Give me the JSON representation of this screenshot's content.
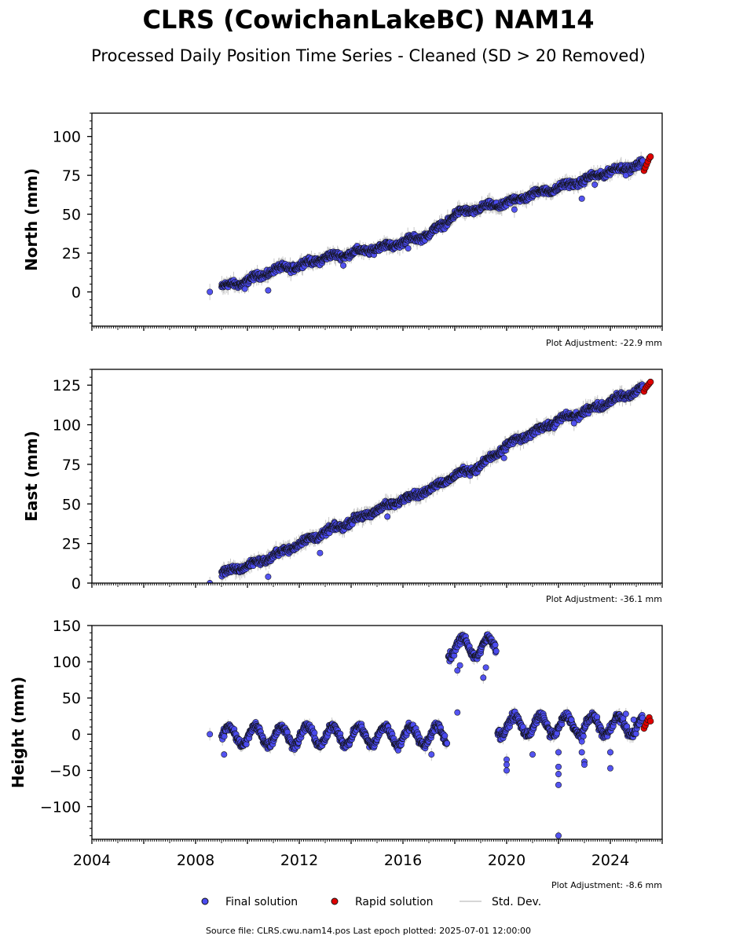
{
  "figure": {
    "title": "CLRS (CowichanLakeBC) NAM14",
    "subtitle": "Processed Daily Position Time Series - Cleaned (SD > 20 Removed)",
    "source_note": "Source file: CLRS.cwu.nam14.pos  Last epoch plotted: 2025-07-01 12:00:00"
  },
  "legend": {
    "final_label": "Final solution",
    "rapid_label": "Rapid solution",
    "std_label": "Std. Dev."
  },
  "colors": {
    "final": "#4b4bf0",
    "rapid": "#e00000",
    "marker_edge": "#111111",
    "std": "#c8c8c8"
  },
  "chart_data": [
    {
      "type": "scatter",
      "panel": "north",
      "ylabel": "North (mm)",
      "adjustment_note": "Plot Adjustment: -22.9 mm",
      "xlim": [
        2004,
        2026
      ],
      "ylim": [
        -22,
        115
      ],
      "yticks": [
        0,
        25,
        50,
        75,
        100
      ],
      "show_xticklabels": false,
      "series": [
        {
          "name": "Final solution",
          "points": [
            [
              2008.55,
              0
            ],
            [
              2009.0,
              3
            ],
            [
              2010.0,
              7
            ],
            [
              2011.0,
              14
            ],
            [
              2012.0,
              17
            ],
            [
              2013.0,
              22
            ],
            [
              2014.0,
              25
            ],
            [
              2015.0,
              28
            ],
            [
              2016.0,
              32
            ],
            [
              2017.0,
              37
            ],
            [
              2017.6,
              44
            ],
            [
              2018.0,
              50
            ],
            [
              2019.0,
              54
            ],
            [
              2020.0,
              57
            ],
            [
              2021.0,
              63
            ],
            [
              2022.0,
              67
            ],
            [
              2023.0,
              72
            ],
            [
              2024.0,
              78
            ],
            [
              2025.0,
              81
            ],
            [
              2025.25,
              83
            ]
          ]
        },
        {
          "name": "Rapid solution",
          "points": [
            [
              2025.3,
              78
            ],
            [
              2025.35,
              80
            ],
            [
              2025.4,
              82
            ],
            [
              2025.45,
              84
            ],
            [
              2025.5,
              86
            ],
            [
              2025.55,
              87
            ]
          ]
        }
      ],
      "outliers": [
        [
          2009.9,
          2
        ],
        [
          2010.8,
          1
        ],
        [
          2013.7,
          17
        ],
        [
          2016.2,
          28
        ],
        [
          2020.3,
          53
        ],
        [
          2022.9,
          60
        ],
        [
          2023.4,
          69
        ],
        [
          2024.6,
          75
        ]
      ]
    },
    {
      "type": "scatter",
      "panel": "east",
      "ylabel": "East (mm)",
      "adjustment_note": "Plot Adjustment: -36.1 mm",
      "xlim": [
        2004,
        2026
      ],
      "ylim": [
        0,
        135
      ],
      "yticks": [
        0,
        25,
        50,
        75,
        100,
        125
      ],
      "show_xticklabels": false,
      "series": [
        {
          "name": "Final solution",
          "points": [
            [
              2008.55,
              0
            ],
            [
              2009.0,
              6
            ],
            [
              2010.0,
              11
            ],
            [
              2011.0,
              17
            ],
            [
              2012.0,
              25
            ],
            [
              2013.0,
              32
            ],
            [
              2014.0,
              39
            ],
            [
              2015.0,
              46
            ],
            [
              2016.0,
              53
            ],
            [
              2017.0,
              59
            ],
            [
              2018.0,
              68
            ],
            [
              2019.0,
              74
            ],
            [
              2019.8,
              84
            ],
            [
              2020.0,
              87
            ],
            [
              2021.0,
              95
            ],
            [
              2022.0,
              103
            ],
            [
              2023.0,
              108
            ],
            [
              2024.0,
              115
            ],
            [
              2025.0,
              121
            ],
            [
              2025.25,
              124
            ]
          ]
        },
        {
          "name": "Rapid solution",
          "points": [
            [
              2025.3,
              121
            ],
            [
              2025.35,
              123
            ],
            [
              2025.4,
              124
            ],
            [
              2025.45,
              125
            ],
            [
              2025.5,
              126
            ],
            [
              2025.55,
              127
            ]
          ]
        }
      ],
      "outliers": [
        [
          2010.8,
          4
        ],
        [
          2012.8,
          19
        ],
        [
          2015.4,
          42
        ],
        [
          2019.9,
          79
        ],
        [
          2022.6,
          101
        ]
      ]
    },
    {
      "type": "scatter",
      "panel": "height",
      "ylabel": "Height (mm)",
      "adjustment_note": "Plot Adjustment: -8.6 mm",
      "xlim": [
        2004,
        2026
      ],
      "ylim": [
        -145,
        150
      ],
      "yticks": [
        -100,
        -50,
        0,
        50,
        100,
        150
      ],
      "xticks": [
        2004,
        2008,
        2012,
        2016,
        2020,
        2024
      ],
      "show_xticklabels": true,
      "seasonal_amplitude": 13,
      "series": [
        {
          "name": "Final solution",
          "segments": [
            [
              2009.0,
              2017.7,
              -2
            ],
            [
              2017.75,
              2019.6,
              120
            ],
            [
              2019.65,
              2025.25,
              12
            ]
          ],
          "points": [
            [
              2008.55,
              0
            ]
          ]
        },
        {
          "name": "Rapid solution",
          "points": [
            [
              2025.3,
              8
            ],
            [
              2025.35,
              12
            ],
            [
              2025.4,
              16
            ],
            [
              2025.45,
              20
            ],
            [
              2025.5,
              23
            ],
            [
              2025.55,
              18
            ]
          ]
        }
      ],
      "outliers": [
        [
          2009.1,
          -28
        ],
        [
          2017.1,
          -28
        ],
        [
          2018.1,
          30
        ],
        [
          2018.1,
          88
        ],
        [
          2018.2,
          95
        ],
        [
          2019.1,
          78
        ],
        [
          2019.2,
          92
        ],
        [
          2020.0,
          -35
        ],
        [
          2020.0,
          -42
        ],
        [
          2020.0,
          -50
        ],
        [
          2021.0,
          -28
        ],
        [
          2022.0,
          -25
        ],
        [
          2022.0,
          -45
        ],
        [
          2022.0,
          -55
        ],
        [
          2022.0,
          -70
        ],
        [
          2022.0,
          -140
        ],
        [
          2022.5,
          20
        ],
        [
          2022.9,
          -10
        ],
        [
          2022.9,
          -25
        ],
        [
          2023.0,
          -38
        ],
        [
          2023.0,
          -42
        ],
        [
          2024.0,
          -25
        ],
        [
          2024.0,
          -47
        ],
        [
          2024.6,
          28
        ],
        [
          2024.9,
          20
        ]
      ]
    }
  ]
}
